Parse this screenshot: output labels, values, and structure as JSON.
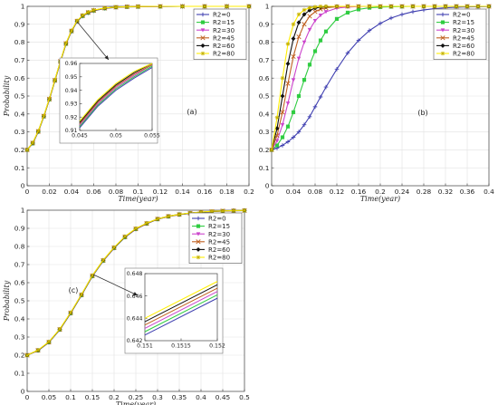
{
  "series_colors": [
    "#3f3fb0",
    "#2ecc40",
    "#cc44cc",
    "#c06020",
    "#111111",
    "#ffee00"
  ],
  "chart_data": [
    {
      "type": "line",
      "panel_label": "(a)",
      "xlabel": "Time(year)",
      "ylabel": "Probability",
      "xlim": [
        0,
        0.2
      ],
      "ylim": [
        0,
        1
      ],
      "xticks": [
        "0",
        "0.02",
        "0.04",
        "0.06",
        "0.08",
        "0.1",
        "0.12",
        "0.14",
        "0.16",
        "0.18",
        "0.2"
      ],
      "yticks": [
        "0",
        "0.1",
        "0.2",
        "0.3",
        "0.4",
        "0.5",
        "0.6",
        "0.7",
        "0.8",
        "0.9",
        "1"
      ],
      "legend_position": "top-right",
      "series_names": [
        "R2=0",
        "R2=15",
        "R2=30",
        "R2=45",
        "R2=60",
        "R2=80"
      ],
      "x": [
        0,
        0.005,
        0.01,
        0.015,
        0.02,
        0.025,
        0.03,
        0.035,
        0.04,
        0.045,
        0.05,
        0.055,
        0.06,
        0.07,
        0.08,
        0.09,
        0.1,
        0.12,
        0.14,
        0.16,
        0.18,
        0.2
      ],
      "series": [
        {
          "values": [
            0.2,
            0.235,
            0.3,
            0.385,
            0.48,
            0.585,
            0.69,
            0.79,
            0.86,
            0.915,
            0.945,
            0.963,
            0.975,
            0.988,
            0.994,
            0.997,
            0.998,
            0.999,
            1,
            1,
            1,
            1
          ]
        },
        {
          "values": [
            0.2,
            0.236,
            0.301,
            0.386,
            0.481,
            0.586,
            0.691,
            0.791,
            0.861,
            0.916,
            0.946,
            0.964,
            0.976,
            0.989,
            0.995,
            0.997,
            0.998,
            0.999,
            1,
            1,
            1,
            1
          ]
        },
        {
          "values": [
            0.2,
            0.237,
            0.302,
            0.387,
            0.482,
            0.587,
            0.692,
            0.792,
            0.862,
            0.917,
            0.947,
            0.965,
            0.977,
            0.989,
            0.995,
            0.997,
            0.998,
            0.999,
            1,
            1,
            1,
            1
          ]
        },
        {
          "values": [
            0.2,
            0.238,
            0.303,
            0.388,
            0.483,
            0.588,
            0.693,
            0.793,
            0.863,
            0.918,
            0.948,
            0.966,
            0.977,
            0.99,
            0.995,
            0.998,
            0.999,
            1,
            1,
            1,
            1,
            1
          ]
        },
        {
          "values": [
            0.2,
            0.239,
            0.304,
            0.389,
            0.484,
            0.589,
            0.694,
            0.794,
            0.864,
            0.919,
            0.949,
            0.967,
            0.978,
            0.99,
            0.996,
            0.998,
            0.999,
            1,
            1,
            1,
            1,
            1
          ]
        },
        {
          "values": [
            0.2,
            0.24,
            0.305,
            0.39,
            0.485,
            0.59,
            0.695,
            0.795,
            0.865,
            0.92,
            0.95,
            0.968,
            0.979,
            0.991,
            0.996,
            0.998,
            0.999,
            1,
            1,
            1,
            1,
            1
          ]
        }
      ],
      "inset": {
        "xlim": [
          0.045,
          0.055
        ],
        "ylim": [
          0.91,
          0.96
        ],
        "xticks": [
          "0.045",
          "0.05",
          "0.055"
        ],
        "yticks": [
          "0.91",
          "0.92",
          "0.93",
          "0.94",
          "0.95",
          "0.96"
        ],
        "x": [
          0.045,
          0.0475,
          0.05,
          0.0525,
          0.055
        ],
        "series": [
          {
            "values": [
              0.912,
              0.928,
              0.94,
              0.949,
              0.957
            ]
          },
          {
            "values": [
              0.913,
              0.929,
              0.941,
              0.95,
              0.958
            ]
          },
          {
            "values": [
              0.914,
              0.93,
              0.942,
              0.951,
              0.959
            ]
          },
          {
            "values": [
              0.915,
              0.931,
              0.943,
              0.952,
              0.959
            ]
          },
          {
            "values": [
              0.916,
              0.932,
              0.944,
              0.953,
              0.96
            ]
          },
          {
            "values": [
              0.917,
              0.933,
              0.945,
              0.954,
              0.96
            ]
          }
        ]
      },
      "zoom_point": [
        0.045,
        0.915
      ]
    },
    {
      "type": "line",
      "panel_label": "(b)",
      "xlabel": "Time(year)",
      "ylabel": "",
      "xlim": [
        0,
        0.4
      ],
      "ylim": [
        0,
        1
      ],
      "xticks": [
        "0",
        "0.04",
        "0.08",
        "0.12",
        "0.16",
        "0.2",
        "0.24",
        "0.28",
        "0.32",
        "0.36",
        "0.4"
      ],
      "yticks": [
        "0",
        "0.1",
        "0.2",
        "0.3",
        "0.4",
        "0.5",
        "0.6",
        "0.7",
        "0.8",
        "0.9",
        "1"
      ],
      "legend_position": "top-right",
      "series_names": [
        "R2=0",
        "R2=15",
        "R2=30",
        "R2=45",
        "R2=60",
        "R2=80"
      ],
      "x": [
        0,
        0.01,
        0.02,
        0.03,
        0.04,
        0.05,
        0.06,
        0.07,
        0.08,
        0.09,
        0.1,
        0.12,
        0.14,
        0.16,
        0.18,
        0.2,
        0.22,
        0.24,
        0.26,
        0.28,
        0.3,
        0.32,
        0.34,
        0.36,
        0.38,
        0.4
      ],
      "series": [
        {
          "values": [
            0.2,
            0.21,
            0.225,
            0.245,
            0.27,
            0.3,
            0.34,
            0.385,
            0.44,
            0.495,
            0.55,
            0.65,
            0.74,
            0.81,
            0.865,
            0.905,
            0.935,
            0.955,
            0.97,
            0.98,
            0.987,
            0.992,
            0.995,
            0.997,
            0.998,
            0.999
          ]
        },
        {
          "values": [
            0.2,
            0.225,
            0.27,
            0.33,
            0.41,
            0.5,
            0.59,
            0.675,
            0.75,
            0.81,
            0.86,
            0.93,
            0.965,
            0.983,
            0.992,
            0.996,
            0.998,
            0.999,
            1,
            1,
            1,
            1,
            1,
            1,
            1,
            1
          ]
        },
        {
          "values": [
            0.2,
            0.25,
            0.34,
            0.46,
            0.59,
            0.71,
            0.8,
            0.87,
            0.92,
            0.95,
            0.97,
            0.99,
            0.996,
            0.999,
            1,
            1,
            1,
            1,
            1,
            1,
            1,
            1,
            1,
            1,
            1,
            1
          ]
        },
        {
          "values": [
            0.2,
            0.28,
            0.41,
            0.57,
            0.72,
            0.83,
            0.9,
            0.945,
            0.97,
            0.984,
            0.992,
            0.998,
            1,
            1,
            1,
            1,
            1,
            1,
            1,
            1,
            1,
            1,
            1,
            1,
            1,
            1
          ]
        },
        {
          "values": [
            0.2,
            0.32,
            0.5,
            0.68,
            0.82,
            0.91,
            0.955,
            0.978,
            0.99,
            0.995,
            0.998,
            1,
            1,
            1,
            1,
            1,
            1,
            1,
            1,
            1,
            1,
            1,
            1,
            1,
            1,
            1
          ]
        },
        {
          "values": [
            0.2,
            0.38,
            0.6,
            0.79,
            0.9,
            0.955,
            0.98,
            0.992,
            0.997,
            0.999,
            1,
            1,
            1,
            1,
            1,
            1,
            1,
            1,
            1,
            1,
            1,
            1,
            1,
            1,
            1,
            1
          ]
        }
      ]
    },
    {
      "type": "line",
      "panel_label": "(c)",
      "xlabel": "Time(year)",
      "ylabel": "Probability",
      "xlim": [
        0,
        0.5
      ],
      "ylim": [
        0,
        1
      ],
      "xticks": [
        "0",
        "0.05",
        "0.1",
        "0.15",
        "0.2",
        "0.25",
        "0.3",
        "0.35",
        "0.4",
        "0.45",
        "0.5"
      ],
      "yticks": [
        "0",
        "0.1",
        "0.2",
        "0.3",
        "0.4",
        "0.5",
        "0.6",
        "0.7",
        "0.8",
        "0.9",
        "1"
      ],
      "legend_position": "top-right",
      "series_names": [
        "R2=0",
        "R2=15",
        "R2=30",
        "R2=45",
        "R2=60",
        "R2=80"
      ],
      "x": [
        0,
        0.025,
        0.05,
        0.075,
        0.1,
        0.125,
        0.15,
        0.175,
        0.2,
        0.225,
        0.25,
        0.275,
        0.3,
        0.325,
        0.35,
        0.375,
        0.4,
        0.425,
        0.45,
        0.475,
        0.5
      ],
      "series": [
        {
          "values": [
            0.2,
            0.225,
            0.27,
            0.34,
            0.43,
            0.53,
            0.635,
            0.72,
            0.79,
            0.85,
            0.895,
            0.925,
            0.95,
            0.965,
            0.975,
            0.983,
            0.988,
            0.992,
            0.995,
            0.997,
            0.998
          ]
        },
        {
          "values": [
            0.2,
            0.226,
            0.271,
            0.341,
            0.431,
            0.531,
            0.636,
            0.721,
            0.791,
            0.851,
            0.896,
            0.926,
            0.95,
            0.965,
            0.976,
            0.983,
            0.988,
            0.992,
            0.995,
            0.997,
            0.998
          ]
        },
        {
          "values": [
            0.2,
            0.226,
            0.272,
            0.342,
            0.432,
            0.532,
            0.637,
            0.722,
            0.792,
            0.852,
            0.896,
            0.926,
            0.951,
            0.966,
            0.976,
            0.984,
            0.989,
            0.993,
            0.995,
            0.997,
            0.998
          ]
        },
        {
          "values": [
            0.2,
            0.227,
            0.272,
            0.342,
            0.433,
            0.533,
            0.638,
            0.723,
            0.793,
            0.853,
            0.897,
            0.927,
            0.951,
            0.966,
            0.976,
            0.984,
            0.989,
            0.993,
            0.996,
            0.997,
            0.998
          ]
        },
        {
          "values": [
            0.2,
            0.227,
            0.273,
            0.343,
            0.434,
            0.534,
            0.639,
            0.724,
            0.794,
            0.854,
            0.898,
            0.928,
            0.952,
            0.967,
            0.977,
            0.984,
            0.989,
            0.993,
            0.996,
            0.998,
            0.999
          ]
        },
        {
          "values": [
            0.2,
            0.228,
            0.274,
            0.344,
            0.435,
            0.535,
            0.64,
            0.725,
            0.795,
            0.855,
            0.899,
            0.929,
            0.952,
            0.967,
            0.977,
            0.985,
            0.99,
            0.994,
            0.996,
            0.998,
            0.999
          ]
        }
      ],
      "inset": {
        "xlim": [
          0.151,
          0.152
        ],
        "ylim": [
          0.642,
          0.648
        ],
        "xticks": [
          "0.151",
          "0.1515",
          "0.152"
        ],
        "yticks": [
          "0.642",
          "0.644",
          "0.646",
          "0.648"
        ],
        "x": [
          0.151,
          0.152
        ],
        "series": [
          {
            "values": [
              0.6425,
              0.6458
            ]
          },
          {
            "values": [
              0.6428,
              0.6461
            ]
          },
          {
            "values": [
              0.6431,
              0.6464
            ]
          },
          {
            "values": [
              0.6434,
              0.6467
            ]
          },
          {
            "values": [
              0.6437,
              0.647
            ]
          },
          {
            "values": [
              0.644,
              0.6473
            ]
          }
        ]
      },
      "zoom_point": [
        0.152,
        0.645
      ]
    }
  ]
}
